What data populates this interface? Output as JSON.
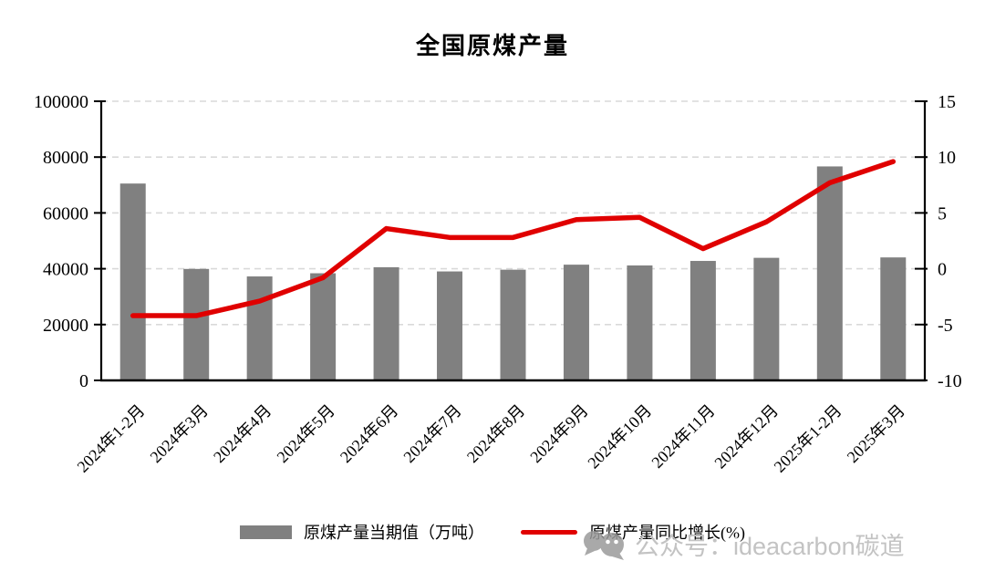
{
  "chart": {
    "title": "全国原煤产量",
    "legend": {
      "bar_label": "原煤产量当期值（万吨）",
      "line_label": "原煤产量同比增长(%)"
    },
    "watermark": "公众号：ideacarbon碳道",
    "colors": {
      "bar": "#808080",
      "line": "#e00000",
      "grid": "#d9d9d9",
      "axis": "#000000",
      "watermark_text": "#c3c3c3",
      "watermark_logo": "#9b9b9b"
    }
  },
  "chart_data": {
    "type": "bar+line",
    "title": "全国原煤产量",
    "categories": [
      "2024年1-2月",
      "2024年3月",
      "2024年4月",
      "2024年5月",
      "2024年6月",
      "2024年7月",
      "2024年8月",
      "2024年9月",
      "2024年10月",
      "2024年11月",
      "2024年12月",
      "2025年1-2月",
      "2025年3月"
    ],
    "series": [
      {
        "name": "原煤产量当期值（万吨）",
        "type": "bar",
        "axis": "left",
        "unit": "万吨",
        "values": [
          70527,
          39932,
          37246,
          38384,
          40538,
          39037,
          39655,
          41459,
          41180,
          42798,
          43911,
          76652,
          44058
        ]
      },
      {
        "name": "原煤产量同比增长(%)",
        "type": "line",
        "axis": "right",
        "unit": "%",
        "values": [
          -4.2,
          -4.2,
          -2.9,
          -0.8,
          3.6,
          2.8,
          2.8,
          4.4,
          4.6,
          1.8,
          4.2,
          7.7,
          9.6
        ]
      }
    ],
    "left_axis": {
      "min": 0,
      "max": 100000,
      "ticks": [
        0,
        20000,
        40000,
        60000,
        80000,
        100000
      ]
    },
    "right_axis": {
      "min": -10,
      "max": 15,
      "ticks": [
        -10,
        -5,
        0,
        5,
        10,
        15
      ]
    },
    "grid": "horizontal-dashed",
    "legend_position": "bottom",
    "x_label_rotation_deg": -45
  }
}
